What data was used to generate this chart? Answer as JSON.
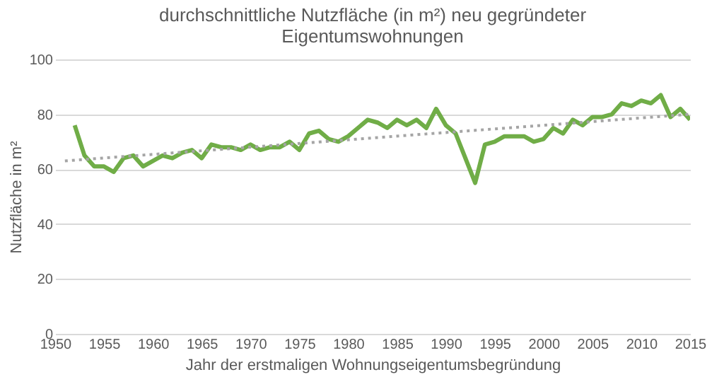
{
  "chart_data": {
    "type": "line",
    "title": [
      "durchschnittliche Nutzfläche (in m²) neu gegründeter",
      "Eigentumswohnungen"
    ],
    "xlabel": "Jahr der erstmaligen Wohnungseigentumsbegründung",
    "ylabel": "Nutzfläche in m²",
    "x": [
      1952,
      1953,
      1954,
      1955,
      1956,
      1957,
      1958,
      1959,
      1960,
      1961,
      1962,
      1963,
      1964,
      1965,
      1966,
      1967,
      1968,
      1969,
      1970,
      1971,
      1972,
      1973,
      1974,
      1975,
      1976,
      1977,
      1978,
      1979,
      1980,
      1981,
      1982,
      1983,
      1984,
      1985,
      1986,
      1987,
      1988,
      1989,
      1990,
      1991,
      1992,
      1993,
      1994,
      1995,
      1996,
      1997,
      1998,
      1999,
      2000,
      2001,
      2002,
      2003,
      2004,
      2005,
      2006,
      2007,
      2008,
      2009,
      2010,
      2011,
      2012,
      2013,
      2014,
      2015
    ],
    "series": [
      {
        "color": "#70ad47",
        "line_style": "solid",
        "values": [
          76,
          65,
          61,
          61,
          59,
          64,
          65,
          61,
          63,
          65,
          64,
          66,
          67,
          64,
          69,
          68,
          68,
          67,
          69,
          67,
          68,
          68,
          70,
          67,
          73,
          74,
          71,
          70,
          72,
          75,
          78,
          77,
          75,
          78,
          76,
          78,
          75,
          82,
          76,
          73,
          64,
          55,
          69,
          70,
          72,
          72,
          72,
          70,
          71,
          75,
          73,
          78,
          76,
          79,
          79,
          80,
          84,
          83,
          85,
          84,
          87,
          79,
          82,
          78
        ]
      },
      {
        "type": "line",
        "color": "#a5a5a5",
        "line_style": "dotted",
        "x": [
          1951,
          2015
        ],
        "values": [
          63,
          80
        ]
      }
    ],
    "xlim": [
      1950,
      2015
    ],
    "xticks": [
      1950,
      1955,
      1960,
      1965,
      1970,
      1975,
      1980,
      1985,
      1990,
      1995,
      2000,
      2005,
      2010,
      2015
    ],
    "ylim": [
      0,
      100
    ],
    "yticks": [
      0,
      20,
      40,
      60,
      80,
      100
    ],
    "grid": "y",
    "marker": "none"
  }
}
